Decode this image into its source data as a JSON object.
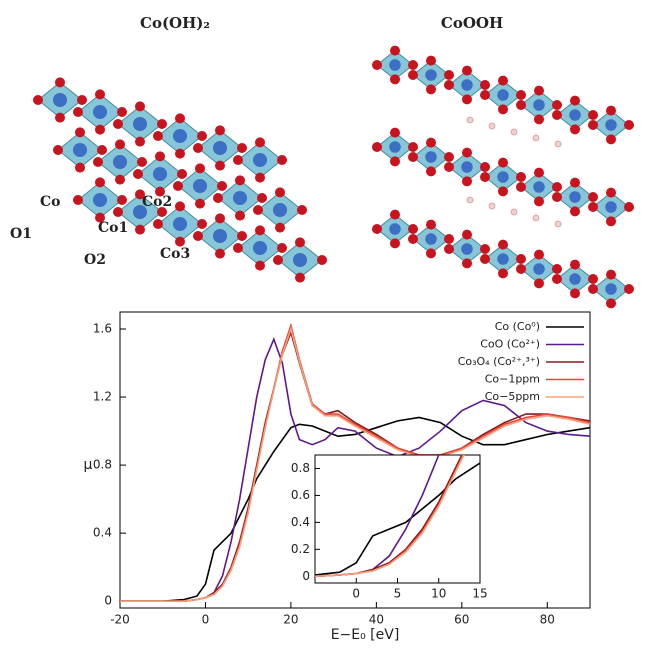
{
  "structures": [
    {
      "title": "Co(OH)₂",
      "labels": [
        "Co",
        "O1",
        "Co1",
        "Co2",
        "O2",
        "Co3"
      ]
    },
    {
      "title": "CoOOH"
    }
  ],
  "chart_data": {
    "type": "line",
    "x_label": "E−E₀ [eV]",
    "y_label": "μ",
    "x": [
      -20,
      -10,
      -5,
      -2,
      0,
      2,
      4,
      6,
      8,
      10,
      12,
      14,
      16,
      18,
      20,
      22,
      25,
      28,
      31,
      35,
      40,
      45,
      50,
      55,
      60,
      65,
      70,
      75,
      80,
      85,
      90
    ],
    "series": [
      {
        "name": "Co (Co⁰)",
        "color": "#000000",
        "values": [
          0,
          0,
          0.01,
          0.03,
          0.1,
          0.3,
          0.35,
          0.4,
          0.5,
          0.6,
          0.72,
          0.8,
          0.88,
          0.95,
          1.02,
          1.04,
          1.03,
          1.0,
          0.97,
          0.98,
          1.02,
          1.06,
          1.08,
          1.05,
          0.97,
          0.92,
          0.92,
          0.95,
          0.98,
          1.0,
          1.02
        ]
      },
      {
        "name": "CoO (Co²⁺)",
        "color": "#5b1a8c",
        "values": [
          0,
          0,
          0,
          0.01,
          0.02,
          0.05,
          0.15,
          0.35,
          0.6,
          0.9,
          1.2,
          1.42,
          1.54,
          1.4,
          1.1,
          0.95,
          0.92,
          0.95,
          1.02,
          1.0,
          0.9,
          0.85,
          0.9,
          1.0,
          1.12,
          1.18,
          1.15,
          1.05,
          1.0,
          0.98,
          0.97
        ]
      },
      {
        "name": "Co₃O₄ (Co²⁺,³⁺)",
        "color": "#8b1a1a",
        "values": [
          0,
          0,
          0,
          0.01,
          0.02,
          0.05,
          0.1,
          0.2,
          0.35,
          0.55,
          0.8,
          1.05,
          1.25,
          1.45,
          1.58,
          1.4,
          1.15,
          1.1,
          1.12,
          1.05,
          0.98,
          0.9,
          0.85,
          0.85,
          0.9,
          0.98,
          1.05,
          1.1,
          1.1,
          1.08,
          1.06
        ]
      },
      {
        "name": "Co−1ppm",
        "color": "#e8463a",
        "values": [
          0,
          0,
          0,
          0.01,
          0.02,
          0.04,
          0.09,
          0.19,
          0.33,
          0.53,
          0.78,
          1.03,
          1.25,
          1.47,
          1.62,
          1.42,
          1.16,
          1.1,
          1.1,
          1.04,
          0.97,
          0.9,
          0.86,
          0.86,
          0.9,
          0.97,
          1.04,
          1.08,
          1.1,
          1.08,
          1.05
        ]
      },
      {
        "name": "Co−5ppm",
        "color": "#f5a07a",
        "values": [
          0,
          0,
          0,
          0.01,
          0.02,
          0.04,
          0.09,
          0.18,
          0.32,
          0.52,
          0.77,
          1.02,
          1.24,
          1.45,
          1.6,
          1.41,
          1.15,
          1.09,
          1.09,
          1.03,
          0.96,
          0.89,
          0.85,
          0.85,
          0.89,
          0.96,
          1.03,
          1.07,
          1.09,
          1.07,
          1.04
        ]
      }
    ],
    "xlim": [
      -20,
      90
    ],
    "ylim": [
      -0.04,
      1.7
    ],
    "xticks": [
      -20,
      0,
      20,
      40,
      60,
      80
    ],
    "yticks": [
      0,
      0.4,
      0.8,
      1.2,
      1.6
    ],
    "legend": "upper right",
    "inset": {
      "xlim": [
        -5,
        15
      ],
      "ylim": [
        -0.05,
        0.9
      ],
      "xticks": [
        0,
        5,
        10,
        15
      ],
      "yticks": [
        0,
        0.2,
        0.4,
        0.6,
        0.8
      ]
    }
  }
}
